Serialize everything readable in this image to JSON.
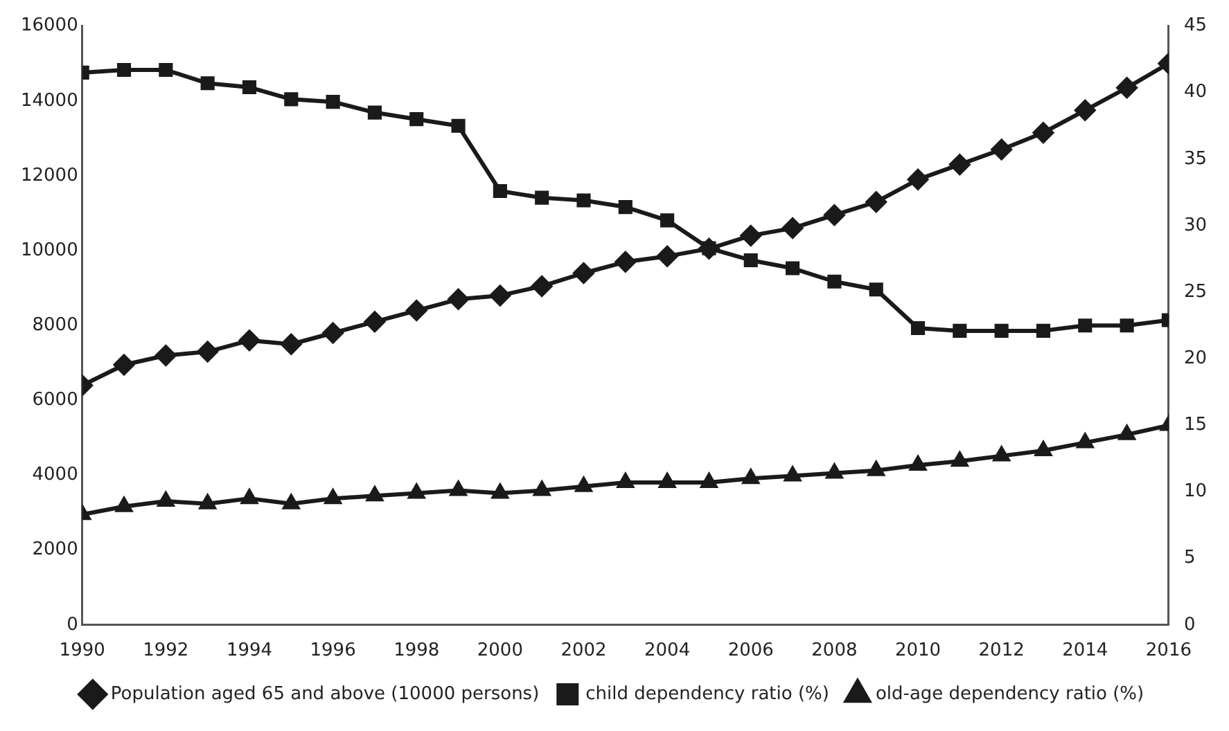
{
  "chart_data": {
    "type": "line",
    "x": [
      1990,
      1991,
      1992,
      1993,
      1994,
      1995,
      1996,
      1997,
      1998,
      1999,
      2000,
      2001,
      2002,
      2003,
      2004,
      2005,
      2006,
      2007,
      2008,
      2009,
      2010,
      2011,
      2012,
      2013,
      2014,
      2015,
      2016
    ],
    "xlim": [
      1990,
      2016
    ],
    "xticks": [
      1990,
      1992,
      1994,
      1996,
      1998,
      2000,
      2002,
      2004,
      2006,
      2008,
      2010,
      2012,
      2014,
      2016
    ],
    "ylim": [
      0,
      16000
    ],
    "yticks": [
      0,
      2000,
      4000,
      6000,
      8000,
      10000,
      12000,
      14000,
      16000
    ],
    "y2lim": [
      0,
      45
    ],
    "y2ticks": [
      0,
      5,
      10,
      15,
      20,
      25,
      30,
      35,
      40,
      45
    ],
    "legend": "bottom",
    "grid": false,
    "line_style": "solid",
    "series": [
      {
        "name": "Population aged 65 and above (10000 persons)",
        "color": "#1a1a1a",
        "marker": "diamond",
        "values": [
          6400,
          6950,
          7200,
          7300,
          7600,
          7500,
          7800,
          8100,
          8400,
          8700,
          8800,
          9050,
          9400,
          9700,
          9850,
          10050,
          10400,
          10600,
          10950,
          11300,
          11900,
          12300,
          12700,
          13150,
          13750,
          14350,
          15000
        ]
      },
      {
        "name": "child dependency ratio (%)",
        "color": "#1a1a1a",
        "marker": "square",
        "axis": "y2",
        "values": [
          41.5,
          41.7,
          41.7,
          40.7,
          40.4,
          39.5,
          39.3,
          38.5,
          38.0,
          37.5,
          32.6,
          32.1,
          31.9,
          31.4,
          30.4,
          28.3,
          27.4,
          26.8,
          25.8,
          25.2,
          22.3,
          22.1,
          22.1,
          22.1,
          22.5,
          22.5,
          22.9
        ]
      },
      {
        "name": "old-age dependency ratio (%)",
        "color": "#1a1a1a",
        "marker": "triangle",
        "axis": "y2",
        "values": [
          8.3,
          8.9,
          9.3,
          9.1,
          9.5,
          9.1,
          9.5,
          9.7,
          9.9,
          10.1,
          9.9,
          10.1,
          10.4,
          10.7,
          10.7,
          10.7,
          11.0,
          11.2,
          11.4,
          11.6,
          12.0,
          12.3,
          12.7,
          13.1,
          13.7,
          14.3,
          15.0
        ]
      }
    ]
  }
}
